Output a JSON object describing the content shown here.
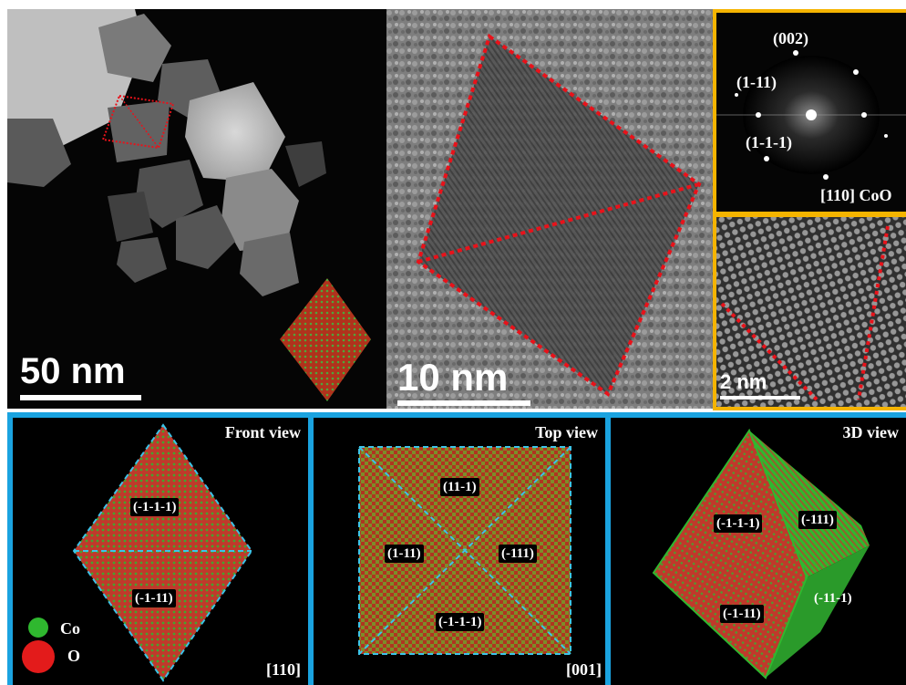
{
  "top": {
    "stem_scale": "50 nm",
    "hrtem_scale": "10 nm",
    "hrtem_zoom_scale": "2 nm",
    "fft_labels": [
      "(002)",
      "(1-11)",
      "(1-1-1)"
    ],
    "fft_zone": "[110] CoO"
  },
  "bottom": {
    "front": {
      "title": "Front view",
      "faces": [
        "(-1-1-1)",
        "(-1-11)"
      ],
      "zone": "[110]",
      "legend": [
        {
          "label": "Co",
          "color": "#2fb82f"
        },
        {
          "label": "O",
          "color": "#e31b1b"
        }
      ]
    },
    "top": {
      "title": "Top view",
      "faces": [
        "(11-1)",
        "(1-11)",
        "(-111)",
        "(-1-1-1)"
      ],
      "zone": "[001]"
    },
    "d3": {
      "title": "3D view",
      "faces": [
        "(-1-1-1)",
        "(-111)",
        "(-1-11)",
        "(-11-1)"
      ]
    }
  },
  "colors": {
    "frame_blue": "#1aa3e0",
    "frame_orange": "#f5b400",
    "dash_red": "#e8121a",
    "dash_cyan": "#3cc4e8",
    "crystal_red": "#c0392b",
    "crystal_green": "#2fb82f"
  }
}
